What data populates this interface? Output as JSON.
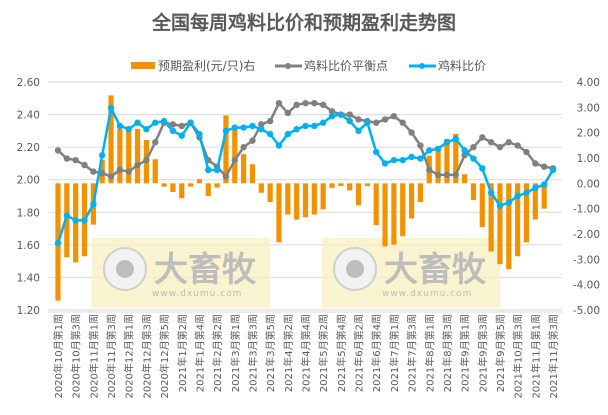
{
  "chart_data": {
    "type": "bar+line",
    "title": "全国每周鸡料比价和预期盈利走势图",
    "x_tick_labels": [
      "2020年10月第1周",
      "2020年10月第3周",
      "2020年11月第1周",
      "2020年11月第3周",
      "2020年12月第1周",
      "2020年12月第3周",
      "2020年12月第5周",
      "2021年1月第2周",
      "2021年1月第4周",
      "2021年2月第2周",
      "2021年3月第1周",
      "2021年3月第3周",
      "2021年3月第5周",
      "2021年4月第2周",
      "2021年4月第4周",
      "2021年5月第2周",
      "2021年5月第4周",
      "2021年6月第2周",
      "2021年6月第4周",
      "2021年7月第1周",
      "2021年7月第3周",
      "2021年8月第1周",
      "2021年8月第3周",
      "2021年9月第1周",
      "2021年9月第3周",
      "2021年9月第5周",
      "2021年10月第3周",
      "2021年11月第1周",
      "2021年11月第3周"
    ],
    "x_tick_every": 2,
    "left_axis": {
      "ylim": [
        1.2,
        2.6
      ],
      "step": 0.2,
      "ticks": [
        "1.20",
        "1.40",
        "1.60",
        "1.80",
        "2.00",
        "2.20",
        "2.40",
        "2.60"
      ]
    },
    "right_axis": {
      "ylim": [
        -5,
        4
      ],
      "step": 1,
      "ticks": [
        "-5.00",
        "-4.00",
        "-3.00",
        "-2.00",
        "-1.00",
        "0.00",
        "1.00",
        "2.00",
        "3.00",
        "4.00"
      ]
    },
    "grid": true,
    "legend_position": "top",
    "series": [
      {
        "name": "预期盈利(元/只)右",
        "type": "bar",
        "axis": "right",
        "color": "#f39200",
        "values": [
          -4.63,
          -2.92,
          -3.12,
          -2.88,
          -1.63,
          0.92,
          3.47,
          2.15,
          2.15,
          2.15,
          1.71,
          0.95,
          -0.13,
          -0.34,
          -0.59,
          -0.13,
          0.16,
          -0.5,
          -0.17,
          2.68,
          2.15,
          1.15,
          0.75,
          -0.37,
          -0.74,
          -2.33,
          -1.23,
          -1.43,
          -1.34,
          -1.23,
          -1.03,
          -0.18,
          -0.11,
          -0.28,
          -0.87,
          -0.11,
          -1.65,
          -2.49,
          -2.42,
          -2.09,
          -1.39,
          -0.74,
          1.09,
          1.35,
          1.75,
          1.95,
          0.36,
          -0.66,
          -1.73,
          -2.69,
          -3.19,
          -3.39,
          -2.88,
          -2.33,
          -1.43,
          -1.0,
          0
        ]
      },
      {
        "name": "鸡料比价平衡点",
        "type": "line",
        "axis": "left",
        "color": "#808080",
        "values": [
          2.18,
          2.13,
          2.12,
          2.09,
          2.05,
          2.04,
          2.02,
          2.06,
          2.05,
          2.09,
          2.12,
          2.23,
          2.35,
          2.34,
          2.33,
          2.35,
          2.26,
          2.12,
          2.08,
          2.02,
          2.12,
          2.2,
          2.24,
          2.34,
          2.36,
          2.47,
          2.41,
          2.46,
          2.47,
          2.47,
          2.46,
          2.42,
          2.4,
          2.4,
          2.37,
          2.36,
          2.35,
          2.37,
          2.39,
          2.35,
          2.29,
          2.21,
          2.06,
          2.03,
          2.03,
          2.03,
          2.15,
          2.2,
          2.26,
          2.23,
          2.2,
          2.23,
          2.21,
          2.17,
          2.1,
          2.08,
          2.07
        ]
      },
      {
        "name": "鸡料比价",
        "type": "line",
        "axis": "left",
        "color": "#00b0f0",
        "values": [
          1.61,
          1.78,
          1.75,
          1.75,
          1.85,
          2.15,
          2.44,
          2.33,
          2.31,
          2.35,
          2.31,
          2.35,
          2.36,
          2.3,
          2.27,
          2.35,
          2.28,
          2.06,
          2.06,
          2.3,
          2.32,
          2.32,
          2.33,
          2.31,
          2.28,
          2.21,
          2.28,
          2.31,
          2.33,
          2.33,
          2.35,
          2.39,
          2.4,
          2.36,
          2.3,
          2.35,
          2.17,
          2.1,
          2.12,
          2.12,
          2.14,
          2.13,
          2.18,
          2.19,
          2.23,
          2.25,
          2.18,
          2.13,
          2.07,
          1.92,
          1.84,
          1.86,
          1.9,
          1.92,
          1.95,
          1.97,
          2.06
        ]
      }
    ]
  },
  "watermark": {
    "text": "大畜牧",
    "url": "www.dxumu.com"
  }
}
